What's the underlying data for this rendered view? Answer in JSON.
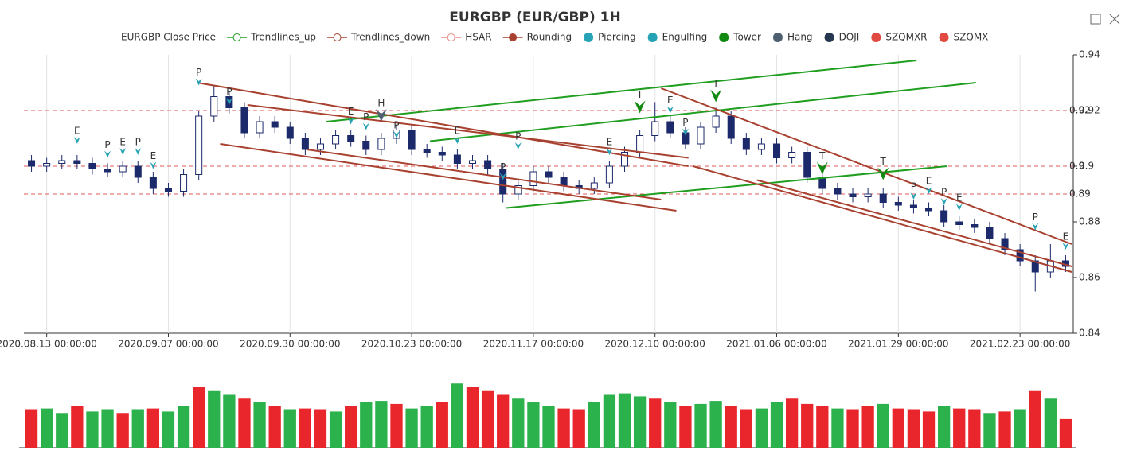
{
  "chart_data": {
    "type": "candlestick",
    "title": "EURGBP (EUR/GBP) 1H",
    "candle_color": "#1c2a6b",
    "categories": [
      null,
      "2020.08.13 00:00:00",
      null,
      null,
      null,
      null,
      null,
      null,
      null,
      "2020.09.07 00:00:00",
      null,
      null,
      null,
      null,
      null,
      null,
      null,
      "2020.09.30 00:00:00",
      null,
      null,
      null,
      null,
      null,
      null,
      null,
      "2020.10.23 00:00:00",
      null,
      null,
      null,
      null,
      null,
      null,
      null,
      "2020.11.17 00:00:00",
      null,
      null,
      null,
      null,
      null,
      null,
      null,
      "2020.12.10 00:00:00",
      null,
      null,
      null,
      null,
      null,
      null,
      null,
      "2021.01.06 00:00:00",
      null,
      null,
      null,
      null,
      null,
      null,
      null,
      "2021.01.29 00:00:00",
      null,
      null,
      null,
      null,
      null,
      null,
      null,
      "2021.02.23 00:00:00",
      null,
      null,
      null
    ],
    "open": [
      0.902,
      0.9,
      0.901,
      0.902,
      0.901,
      0.899,
      0.898,
      0.9,
      0.896,
      0.892,
      0.891,
      0.897,
      0.918,
      0.925,
      0.921,
      0.912,
      0.916,
      0.914,
      0.91,
      0.906,
      0.908,
      0.911,
      0.909,
      0.906,
      0.91,
      0.913,
      0.906,
      0.905,
      0.904,
      0.901,
      0.902,
      0.899,
      0.89,
      0.893,
      0.898,
      0.896,
      0.893,
      0.892,
      0.894,
      0.9,
      0.905,
      0.911,
      0.916,
      0.912,
      0.908,
      0.914,
      0.918,
      0.91,
      0.906,
      0.908,
      0.903,
      0.905,
      0.896,
      0.892,
      0.89,
      0.889,
      0.89,
      0.887,
      0.886,
      0.885,
      0.884,
      0.88,
      0.879,
      0.878,
      0.874,
      0.87,
      0.866,
      0.862,
      0.866
    ],
    "high": [
      0.904,
      0.903,
      0.904,
      0.904,
      0.903,
      0.901,
      0.902,
      0.902,
      0.898,
      0.894,
      0.899,
      0.92,
      0.929,
      0.927,
      0.923,
      0.918,
      0.918,
      0.916,
      0.912,
      0.91,
      0.913,
      0.913,
      0.911,
      0.912,
      0.915,
      0.915,
      0.908,
      0.907,
      0.906,
      0.904,
      0.904,
      0.901,
      0.895,
      0.9,
      0.9,
      0.898,
      0.895,
      0.896,
      0.902,
      0.907,
      0.913,
      0.923,
      0.918,
      0.914,
      0.916,
      0.921,
      0.92,
      0.912,
      0.91,
      0.91,
      0.907,
      0.907,
      0.898,
      0.894,
      0.892,
      0.892,
      0.892,
      0.889,
      0.888,
      0.887,
      0.886,
      0.882,
      0.881,
      0.88,
      0.876,
      0.872,
      0.868,
      0.872,
      0.868
    ],
    "low": [
      0.898,
      0.898,
      0.899,
      0.899,
      0.897,
      0.896,
      0.896,
      0.894,
      0.89,
      0.889,
      0.889,
      0.895,
      0.916,
      0.919,
      0.91,
      0.91,
      0.912,
      0.908,
      0.904,
      0.904,
      0.906,
      0.907,
      0.904,
      0.904,
      0.908,
      0.904,
      0.903,
      0.902,
      0.899,
      0.899,
      0.897,
      0.887,
      0.888,
      0.891,
      0.894,
      0.891,
      0.89,
      0.89,
      0.892,
      0.898,
      0.903,
      0.909,
      0.91,
      0.906,
      0.906,
      0.912,
      0.908,
      0.904,
      0.904,
      0.901,
      0.901,
      0.894,
      0.89,
      0.888,
      0.887,
      0.887,
      0.885,
      0.884,
      0.883,
      0.882,
      0.878,
      0.877,
      0.876,
      0.872,
      0.868,
      0.864,
      0.855,
      0.86,
      0.862
    ],
    "close": [
      0.9,
      0.901,
      0.902,
      0.901,
      0.899,
      0.898,
      0.9,
      0.896,
      0.892,
      0.891,
      0.897,
      0.918,
      0.925,
      0.921,
      0.912,
      0.916,
      0.914,
      0.91,
      0.906,
      0.908,
      0.911,
      0.909,
      0.906,
      0.91,
      0.913,
      0.906,
      0.905,
      0.904,
      0.901,
      0.902,
      0.899,
      0.89,
      0.893,
      0.898,
      0.896,
      0.893,
      0.892,
      0.894,
      0.9,
      0.905,
      0.911,
      0.916,
      0.912,
      0.908,
      0.914,
      0.918,
      0.91,
      0.906,
      0.908,
      0.903,
      0.905,
      0.896,
      0.892,
      0.89,
      0.889,
      0.89,
      0.887,
      0.886,
      0.885,
      0.884,
      0.88,
      0.879,
      0.878,
      0.874,
      0.87,
      0.866,
      0.862,
      0.866,
      0.864
    ],
    "ylim": [
      0.84,
      0.94
    ],
    "yticks": [
      0.84,
      0.86,
      0.88,
      0.9,
      0.92,
      0.94
    ],
    "hsar_levels": [
      0.92,
      0.9,
      0.89
    ],
    "hsar_color": "#e05a5a",
    "legend": [
      {
        "name": "EURGBP Close Price",
        "color": "#1c2a6b",
        "symbol": "none"
      },
      {
        "name": "Trendlines_up",
        "color": "#1f9e1f",
        "symbol": "line"
      },
      {
        "name": "Trendlines_down",
        "color": "#a8412f",
        "symbol": "line"
      },
      {
        "name": "HSAR",
        "color": "#e88a84",
        "symbol": "line"
      },
      {
        "name": "Rounding",
        "color": "#a8412f",
        "symbol": "dot-line"
      },
      {
        "name": "Piercing",
        "color": "#26a3b4",
        "symbol": "dot"
      },
      {
        "name": "Engulfing",
        "color": "#26a3b4",
        "symbol": "dot"
      },
      {
        "name": "Tower",
        "color": "#128a12",
        "symbol": "dot"
      },
      {
        "name": "Hang",
        "color": "#4e5f70",
        "symbol": "dot"
      },
      {
        "name": "DOJI",
        "color": "#263850",
        "symbol": "dot"
      },
      {
        "name": "SZQMXR",
        "color": "#e04a40",
        "symbol": "dot"
      },
      {
        "name": "SZQMX",
        "color": "#e04a40",
        "symbol": "dot"
      }
    ],
    "trendlines_up": [
      {
        "x": [
          19.4,
          58.2
        ],
        "y": [
          0.916,
          0.938
        ]
      },
      {
        "x": [
          26.2,
          62.1
        ],
        "y": [
          0.909,
          0.93
        ]
      },
      {
        "x": [
          31.2,
          60.2
        ],
        "y": [
          0.885,
          0.9
        ]
      }
    ],
    "trendlines_down": [
      {
        "x": [
          10.9,
          43.2
        ],
        "y": [
          0.93,
          0.9
        ]
      },
      {
        "x": [
          14.2,
          43.2
        ],
        "y": [
          0.922,
          0.903
        ]
      },
      {
        "x": [
          12.4,
          42.4
        ],
        "y": [
          0.908,
          0.884
        ]
      },
      {
        "x": [
          18.1,
          41.4
        ],
        "y": [
          0.906,
          0.888
        ]
      },
      {
        "x": [
          41.4,
          68.4
        ],
        "y": [
          0.928,
          0.872
        ]
      },
      {
        "x": [
          43.5,
          68.4
        ],
        "y": [
          0.9,
          0.862
        ]
      },
      {
        "x": [
          47.7,
          68.4
        ],
        "y": [
          0.895,
          0.864
        ]
      }
    ],
    "trend_up_color": "#1f9e1f",
    "trend_down_color": "#a8412f",
    "patterns": [
      {
        "label": "E",
        "index": 3,
        "value": 0.908,
        "color": "#26a3b4"
      },
      {
        "label": "P",
        "index": 5,
        "value": 0.903,
        "color": "#26a3b4"
      },
      {
        "label": "E",
        "index": 6,
        "value": 0.904,
        "color": "#26a3b4"
      },
      {
        "label": "P",
        "index": 7,
        "value": 0.904,
        "color": "#26a3b4"
      },
      {
        "label": "E",
        "index": 8,
        "value": 0.899,
        "color": "#26a3b4"
      },
      {
        "label": "P",
        "index": 11,
        "value": 0.929,
        "color": "#26a3b4"
      },
      {
        "label": "P",
        "index": 13,
        "value": 0.922,
        "color": "#26a3b4"
      },
      {
        "label": "E",
        "index": 21,
        "value": 0.915,
        "color": "#26a3b4"
      },
      {
        "label": "P",
        "index": 22,
        "value": 0.913,
        "color": "#26a3b4"
      },
      {
        "label": "H",
        "index": 23,
        "value": 0.916,
        "color": "#4e5f70",
        "large": true
      },
      {
        "label": "P",
        "index": 24,
        "value": 0.91,
        "color": "#26a3b4"
      },
      {
        "label": "E",
        "index": 28,
        "value": 0.908,
        "color": "#26a3b4"
      },
      {
        "label": "P",
        "index": 31,
        "value": 0.895,
        "color": "#26a3b4"
      },
      {
        "label": "P",
        "index": 32,
        "value": 0.906,
        "color": "#26a3b4"
      },
      {
        "label": "E",
        "index": 38,
        "value": 0.904,
        "color": "#26a3b4"
      },
      {
        "label": "T",
        "index": 40,
        "value": 0.919,
        "color": "#128a12",
        "large": true
      },
      {
        "label": "E",
        "index": 42,
        "value": 0.919,
        "color": "#26a3b4"
      },
      {
        "label": "P",
        "index": 43,
        "value": 0.911,
        "color": "#26a3b4"
      },
      {
        "label": "T",
        "index": 45,
        "value": 0.923,
        "color": "#128a12",
        "large": true
      },
      {
        "label": "T",
        "index": 52,
        "value": 0.897,
        "color": "#128a12",
        "large": true
      },
      {
        "label": "T",
        "index": 56,
        "value": 0.895,
        "color": "#128a12",
        "large": true
      },
      {
        "label": "P",
        "index": 58,
        "value": 0.888,
        "color": "#26a3b4"
      },
      {
        "label": "E",
        "index": 59,
        "value": 0.89,
        "color": "#26a3b4"
      },
      {
        "label": "P",
        "index": 60,
        "value": 0.886,
        "color": "#26a3b4"
      },
      {
        "label": "E",
        "index": 61,
        "value": 0.884,
        "color": "#26a3b4"
      },
      {
        "label": "P",
        "index": 66,
        "value": 0.877,
        "color": "#26a3b4"
      },
      {
        "label": "E",
        "index": 68,
        "value": 0.87,
        "color": "#26a3b4"
      }
    ],
    "volume": {
      "ylim": [
        0,
        100
      ],
      "values": [
        50,
        52,
        45,
        55,
        48,
        50,
        45,
        50,
        52,
        48,
        55,
        80,
        75,
        70,
        65,
        60,
        55,
        50,
        52,
        50,
        48,
        55,
        60,
        62,
        58,
        52,
        55,
        60,
        85,
        80,
        75,
        70,
        65,
        60,
        55,
        52,
        50,
        60,
        70,
        72,
        68,
        65,
        60,
        55,
        58,
        62,
        55,
        50,
        52,
        60,
        65,
        58,
        55,
        52,
        50,
        55,
        58,
        52,
        50,
        48,
        55,
        52,
        50,
        45,
        48,
        50,
        75,
        65,
        38
      ],
      "colors": [
        "#e8262c",
        "#2bb24c",
        "#2bb24c",
        "#e8262c",
        "#2bb24c",
        "#2bb24c",
        "#e8262c",
        "#2bb24c",
        "#e8262c",
        "#2bb24c",
        "#2bb24c",
        "#e8262c",
        "#2bb24c",
        "#2bb24c",
        "#e8262c",
        "#2bb24c",
        "#e8262c",
        "#2bb24c",
        "#e8262c",
        "#e8262c",
        "#2bb24c",
        "#e8262c",
        "#2bb24c",
        "#2bb24c",
        "#e8262c",
        "#2bb24c",
        "#2bb24c",
        "#e8262c",
        "#2bb24c",
        "#e8262c",
        "#e8262c",
        "#e8262c",
        "#2bb24c",
        "#2bb24c",
        "#2bb24c",
        "#e8262c",
        "#e8262c",
        "#2bb24c",
        "#2bb24c",
        "#2bb24c",
        "#2bb24c",
        "#e8262c",
        "#2bb24c",
        "#e8262c",
        "#2bb24c",
        "#2bb24c",
        "#e8262c",
        "#e8262c",
        "#2bb24c",
        "#2bb24c",
        "#e8262c",
        "#e8262c",
        "#e8262c",
        "#2bb24c",
        "#e8262c",
        "#e8262c",
        "#2bb24c",
        "#e8262c",
        "#e8262c",
        "#e8262c",
        "#2bb24c",
        "#e8262c",
        "#e8262c",
        "#2bb24c",
        "#e8262c",
        "#2bb24c",
        "#e8262c",
        "#2bb24c",
        "#e8262c"
      ]
    }
  }
}
